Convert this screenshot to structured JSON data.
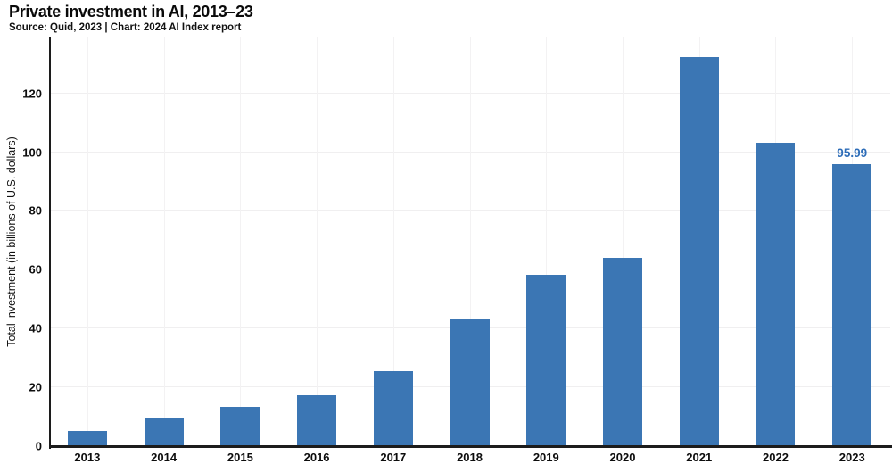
{
  "header": {
    "title": "Private investment in AI, 2013–23",
    "subtitle": "Source: Quid, 2023 | Chart: 2024 AI Index report"
  },
  "chart_data": {
    "type": "bar",
    "title": "Private investment in AI, 2013–23",
    "categories": [
      "2013",
      "2014",
      "2015",
      "2016",
      "2017",
      "2018",
      "2019",
      "2020",
      "2021",
      "2022",
      "2023"
    ],
    "values": [
      5.3,
      9.5,
      13.3,
      17.3,
      25.6,
      43.0,
      58.2,
      63.9,
      132.4,
      103.2,
      95.99
    ],
    "xlabel": "",
    "ylabel": "Total investment (in billions of U.S. dollars)",
    "ylim": [
      0,
      139
    ],
    "yticks": [
      0,
      20,
      40,
      60,
      80,
      100,
      120
    ],
    "grid": true,
    "legend": "none",
    "bar_color": "#3b76b4",
    "axis_color": "#1c1c1c",
    "gridline_color": "#f0eff0",
    "annotations": [
      {
        "category": "2023",
        "text": "95.99",
        "color": "#2e6db8"
      }
    ]
  }
}
